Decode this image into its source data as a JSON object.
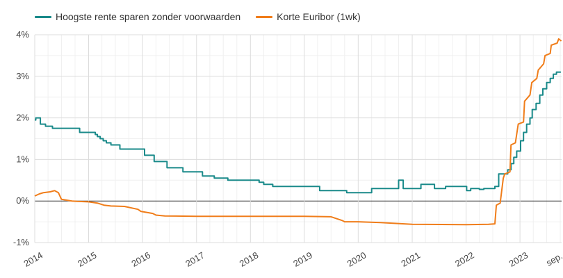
{
  "chart_data": {
    "type": "line",
    "title": "",
    "xlabel": "",
    "ylabel": "",
    "y_unit": "%",
    "ylim": [
      -1,
      4
    ],
    "xlim": [
      "2014-01-01",
      "2023-10-10"
    ],
    "y_ticks": [
      -1,
      0,
      1,
      2,
      3,
      4
    ],
    "y_tick_labels": [
      "-1%",
      "0%",
      "1%",
      "2%",
      "3%",
      "4%"
    ],
    "x_tick_labels": [
      {
        "date": "2014-01-01",
        "label": "2014"
      },
      {
        "date": "2015-01-01",
        "label": "2015"
      },
      {
        "date": "2016-01-01",
        "label": "2016"
      },
      {
        "date": "2017-01-01",
        "label": "2017"
      },
      {
        "date": "2018-01-01",
        "label": "2018"
      },
      {
        "date": "2019-01-01",
        "label": "2019"
      },
      {
        "date": "2020-01-01",
        "label": "2020"
      },
      {
        "date": "2021-01-01",
        "label": "2021"
      },
      {
        "date": "2022-01-01",
        "label": "2022"
      },
      {
        "date": "2023-01-01",
        "label": "2023"
      },
      {
        "date": "2023-09-01",
        "label": "sep."
      }
    ],
    "grid": true,
    "legend_position": "top-left",
    "series": [
      {
        "name": "Hoogste rente sparen zonder voorwaarden",
        "color": "#1a8a8a",
        "step": true,
        "points": [
          [
            "2014-01-01",
            1.95
          ],
          [
            "2014-01-08",
            2.0
          ],
          [
            "2014-02-08",
            1.85
          ],
          [
            "2014-03-15",
            1.8
          ],
          [
            "2014-05-01",
            1.75
          ],
          [
            "2014-11-01",
            1.65
          ],
          [
            "2015-02-15",
            1.6
          ],
          [
            "2015-03-01",
            1.55
          ],
          [
            "2015-03-20",
            1.5
          ],
          [
            "2015-04-10",
            1.45
          ],
          [
            "2015-05-01",
            1.4
          ],
          [
            "2015-06-01",
            1.35
          ],
          [
            "2015-08-01",
            1.25
          ],
          [
            "2016-01-15",
            1.1
          ],
          [
            "2016-03-20",
            0.95
          ],
          [
            "2016-06-15",
            0.8
          ],
          [
            "2016-10-01",
            0.7
          ],
          [
            "2017-02-10",
            0.6
          ],
          [
            "2017-05-01",
            0.55
          ],
          [
            "2017-08-01",
            0.5
          ],
          [
            "2018-03-01",
            0.45
          ],
          [
            "2018-04-01",
            0.4
          ],
          [
            "2018-06-01",
            0.35
          ],
          [
            "2019-04-15",
            0.25
          ],
          [
            "2019-10-15",
            0.2
          ],
          [
            "2020-04-01",
            0.3
          ],
          [
            "2020-10-01",
            0.5
          ],
          [
            "2020-11-01",
            0.3
          ],
          [
            "2021-03-01",
            0.4
          ],
          [
            "2021-06-01",
            0.3
          ],
          [
            "2021-08-15",
            0.35
          ],
          [
            "2022-01-05",
            0.25
          ],
          [
            "2022-02-01",
            0.3
          ],
          [
            "2022-04-01",
            0.28
          ],
          [
            "2022-05-01",
            0.3
          ],
          [
            "2022-07-15",
            0.35
          ],
          [
            "2022-08-10",
            0.65
          ],
          [
            "2022-10-10",
            0.75
          ],
          [
            "2022-11-01",
            0.9
          ],
          [
            "2022-11-20",
            1.05
          ],
          [
            "2022-12-10",
            1.2
          ],
          [
            "2023-01-05",
            1.45
          ],
          [
            "2023-01-25",
            1.65
          ],
          [
            "2023-02-15",
            1.85
          ],
          [
            "2023-03-10",
            2.0
          ],
          [
            "2023-03-25",
            2.2
          ],
          [
            "2023-04-20",
            2.35
          ],
          [
            "2023-05-15",
            2.55
          ],
          [
            "2023-06-05",
            2.7
          ],
          [
            "2023-07-01",
            2.85
          ],
          [
            "2023-07-25",
            2.95
          ],
          [
            "2023-08-15",
            3.05
          ],
          [
            "2023-09-05",
            3.1
          ],
          [
            "2023-10-05",
            3.1
          ]
        ]
      },
      {
        "name": "Korte Euribor (1wk)",
        "color": "#f07d1a",
        "step": false,
        "points": [
          [
            "2014-01-01",
            0.12
          ],
          [
            "2014-02-01",
            0.17
          ],
          [
            "2014-03-01",
            0.2
          ],
          [
            "2014-04-15",
            0.22
          ],
          [
            "2014-05-15",
            0.25
          ],
          [
            "2014-06-10",
            0.2
          ],
          [
            "2014-07-01",
            0.04
          ],
          [
            "2014-09-10",
            0.0
          ],
          [
            "2014-10-15",
            -0.01
          ],
          [
            "2015-01-01",
            -0.02
          ],
          [
            "2015-03-01",
            -0.05
          ],
          [
            "2015-04-15",
            -0.1
          ],
          [
            "2015-06-01",
            -0.12
          ],
          [
            "2015-09-01",
            -0.13
          ],
          [
            "2015-12-01",
            -0.2
          ],
          [
            "2015-12-20",
            -0.25
          ],
          [
            "2016-03-10",
            -0.3
          ],
          [
            "2016-04-01",
            -0.34
          ],
          [
            "2016-06-01",
            -0.36
          ],
          [
            "2017-01-01",
            -0.37
          ],
          [
            "2018-01-01",
            -0.37
          ],
          [
            "2019-01-01",
            -0.37
          ],
          [
            "2019-07-01",
            -0.38
          ],
          [
            "2019-09-15",
            -0.47
          ],
          [
            "2019-10-01",
            -0.5
          ],
          [
            "2020-01-01",
            -0.5
          ],
          [
            "2020-06-01",
            -0.52
          ],
          [
            "2021-01-01",
            -0.56
          ],
          [
            "2022-01-01",
            -0.57
          ],
          [
            "2022-06-01",
            -0.56
          ],
          [
            "2022-07-15",
            -0.55
          ],
          [
            "2022-07-25",
            -0.1
          ],
          [
            "2022-08-20",
            -0.05
          ],
          [
            "2022-09-10",
            0.55
          ],
          [
            "2022-09-20",
            0.65
          ],
          [
            "2022-10-25",
            0.7
          ],
          [
            "2022-11-01",
            1.35
          ],
          [
            "2022-12-01",
            1.4
          ],
          [
            "2022-12-20",
            1.85
          ],
          [
            "2023-01-25",
            1.9
          ],
          [
            "2023-02-01",
            2.4
          ],
          [
            "2023-03-10",
            2.55
          ],
          [
            "2023-03-22",
            2.85
          ],
          [
            "2023-04-25",
            2.95
          ],
          [
            "2023-05-05",
            3.15
          ],
          [
            "2023-06-10",
            3.3
          ],
          [
            "2023-06-20",
            3.5
          ],
          [
            "2023-07-25",
            3.55
          ],
          [
            "2023-08-01",
            3.75
          ],
          [
            "2023-09-10",
            3.8
          ],
          [
            "2023-09-20",
            3.9
          ],
          [
            "2023-10-08",
            3.85
          ]
        ]
      }
    ]
  }
}
